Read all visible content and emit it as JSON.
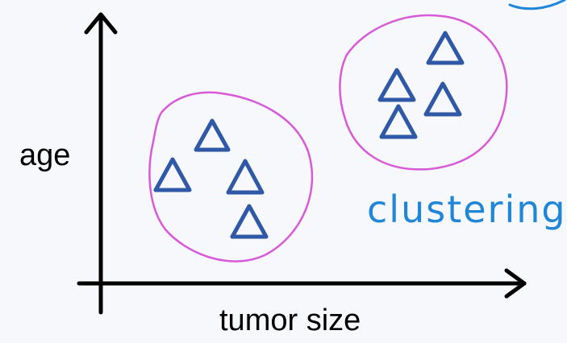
{
  "axes": {
    "x_label": "tumor size",
    "y_label": "age"
  },
  "annotation": {
    "text": "clustering"
  },
  "colors": {
    "background": "#f7f8fb",
    "axis": "#000000",
    "marker": "#2f59a6",
    "cluster_outline": "#d95ad8",
    "annotation": "#1f86d8"
  },
  "clusters": [
    {
      "name": "cluster-left",
      "marker_shape": "triangle",
      "marker_count": 4
    },
    {
      "name": "cluster-right",
      "marker_shape": "triangle",
      "marker_count": 4
    }
  ]
}
